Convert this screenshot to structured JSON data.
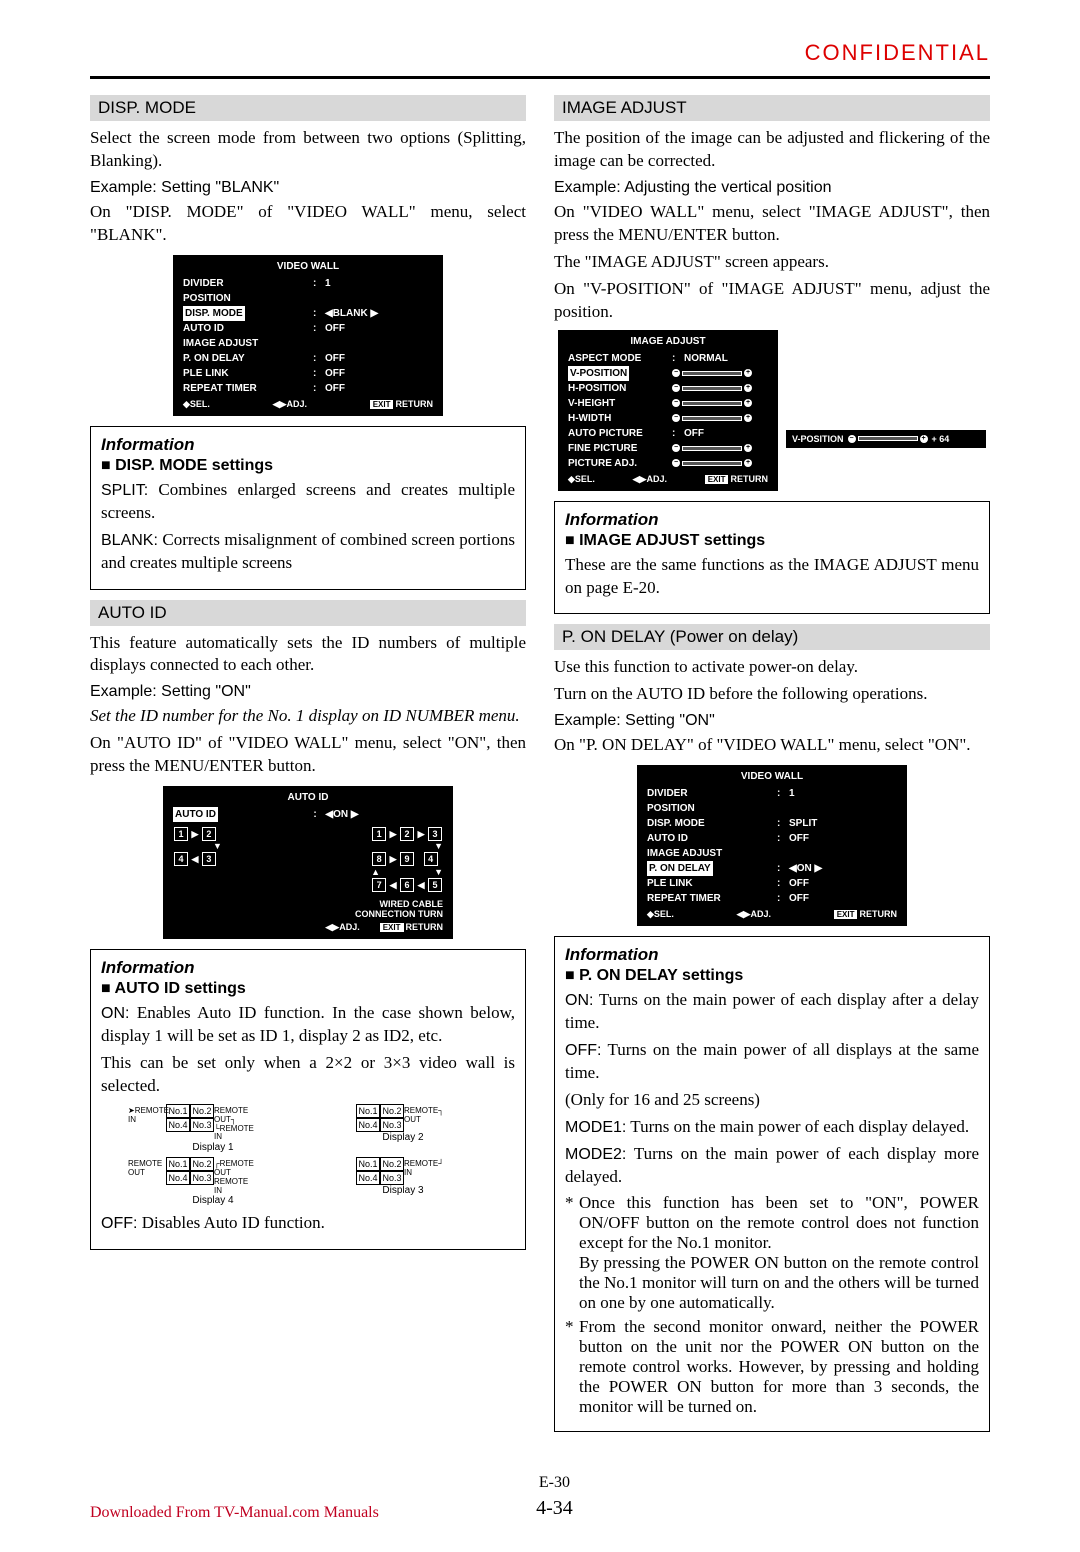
{
  "header": {
    "confidential": "CONFIDENTIAL"
  },
  "left": {
    "dispMode": {
      "head": "DISP. MODE",
      "p1": "Select the screen mode from between two options (Splitting, Blanking).",
      "example": "Example: Setting \"BLANK\"",
      "p2": "On \"DISP. MODE\" of \"VIDEO WALL\" menu, select \"BLANK\"."
    },
    "videoWallMenu1": {
      "title": "VIDEO WALL",
      "rows": [
        {
          "lbl": "DIVIDER",
          "val": "1",
          "colon": true
        },
        {
          "lbl": "POSITION",
          "val": "",
          "colon": false
        },
        {
          "lbl": "DISP. MODE",
          "val": "◀BLANK ▶",
          "colon": true,
          "selected": true
        },
        {
          "lbl": "AUTO ID",
          "val": "OFF",
          "colon": true
        },
        {
          "lbl": "IMAGE ADJUST",
          "val": "",
          "colon": false
        },
        {
          "lbl": "P. ON DELAY",
          "val": "OFF",
          "colon": true
        },
        {
          "lbl": "PLE LINK",
          "val": "OFF",
          "colon": true
        },
        {
          "lbl": "REPEAT TIMER",
          "val": "OFF",
          "colon": true
        }
      ],
      "foot": {
        "sel": "◆SEL.",
        "adj": "◀▶ADJ.",
        "exit": "EXIT",
        "ret": "RETURN"
      }
    },
    "info1": {
      "title": "Information",
      "sub": "DISP. MODE settings",
      "split_lbl": "SPLIT:",
      "split_txt": " Combines enlarged screens and creates multiple screens.",
      "blank_lbl": "BLANK:",
      "blank_txt": " Corrects misalignment of combined screen portions and creates multiple screens"
    },
    "autoId": {
      "head": "AUTO ID",
      "p1": "This feature automatically sets the ID numbers of multiple displays connected to each other.",
      "example": "Example: Setting \"ON\"",
      "setnote": "Set the ID number for the No. 1 display on ID NUMBER menu.",
      "p2": "On \"AUTO ID\" of \"VIDEO WALL\" menu, select \"ON\", then press the MENU/ENTER button."
    },
    "autoIdMenu": {
      "title": "AUTO ID",
      "lbl": "AUTO ID",
      "val": "◀ON  ▶",
      "wired": "WIRED CABLE",
      "conn": "CONNECTION TURN",
      "foot": {
        "adj": "◀▶ADJ.",
        "exit": "EXIT",
        "ret": "RETURN"
      }
    },
    "info2": {
      "title": "Information",
      "sub": "AUTO ID settings",
      "on_lbl": "ON:",
      "on_txt": " Enables Auto ID function. In the case shown below, display 1 will be set as ID 1, display 2 as ID2, etc.",
      "p2": "This can be set only when a 2×2 or 3×3 video wall is selected.",
      "off_lbl": "OFF:",
      "off_txt": " Disables Auto ID function."
    },
    "displays": {
      "d1": "Display 1",
      "d2": "Display 2",
      "d3": "Display 3",
      "d4": "Display 4",
      "remIn": "REMOTE IN",
      "remOut": "REMOTE OUT",
      "cells": [
        "No.1",
        "No.2",
        "No.4",
        "No.3"
      ]
    }
  },
  "right": {
    "imageAdjust": {
      "head": "IMAGE ADJUST",
      "p1": "The position of the image can be adjusted and flickering of the image can be corrected.",
      "example": "Example: Adjusting the vertical position",
      "p2": "On \"VIDEO WALL\" menu, select \"IMAGE ADJUST\", then press the MENU/ENTER button.",
      "p3": "The \"IMAGE ADJUST\" screen appears.",
      "p4": "On \"V-POSITION\" of \"IMAGE ADJUST\" menu, adjust the position."
    },
    "imageAdjustMenu": {
      "title": "IMAGE ADJUST",
      "rows": [
        {
          "lbl": "ASPECT MODE",
          "val": "NORMAL",
          "colon": true
        },
        {
          "lbl": "V-POSITION",
          "slider": true,
          "selected": true
        },
        {
          "lbl": "H-POSITION",
          "slider": true
        },
        {
          "lbl": "V-HEIGHT",
          "slider": true
        },
        {
          "lbl": "H-WIDTH",
          "slider": true
        },
        {
          "lbl": "AUTO PICTURE",
          "val": "OFF",
          "colon": true
        },
        {
          "lbl": "FINE PICTURE",
          "slider": true
        },
        {
          "lbl": "PICTURE ADJ.",
          "slider": true
        }
      ],
      "foot": {
        "sel": "◆SEL.",
        "adj": "◀▶ADJ.",
        "exit": "EXIT",
        "ret": "RETURN"
      },
      "sideLabel": "V-POSITION",
      "sideVal": "+ 64"
    },
    "info3": {
      "title": "Information",
      "sub": "IMAGE ADJUST settings",
      "p1": "These are the same functions as the IMAGE ADJUST menu on page E-20."
    },
    "pOnDelay": {
      "head": "P. ON DELAY (Power on delay)",
      "p1": "Use this function to activate power-on delay.",
      "p2": "Turn on the AUTO ID before the following operations.",
      "example": "Example: Setting \"ON\"",
      "p3": "On \"P. ON DELAY\" of \"VIDEO WALL\" menu, select \"ON\"."
    },
    "videoWallMenu2": {
      "title": "VIDEO WALL",
      "rows": [
        {
          "lbl": "DIVIDER",
          "val": "1",
          "colon": true
        },
        {
          "lbl": "POSITION",
          "val": "",
          "colon": false
        },
        {
          "lbl": "DISP. MODE",
          "val": "SPLIT",
          "colon": true
        },
        {
          "lbl": "AUTO ID",
          "val": "OFF",
          "colon": true
        },
        {
          "lbl": "IMAGE ADJUST",
          "val": "",
          "colon": false
        },
        {
          "lbl": "P. ON DELAY",
          "val": "◀ON  ▶",
          "colon": true,
          "selected": true
        },
        {
          "lbl": "PLE LINK",
          "val": "OFF",
          "colon": true
        },
        {
          "lbl": "REPEAT TIMER",
          "val": "OFF",
          "colon": true
        }
      ],
      "foot": {
        "sel": "◆SEL.",
        "adj": "◀▶ADJ.",
        "exit": "EXIT",
        "ret": "RETURN"
      }
    },
    "info4": {
      "title": "Information",
      "sub": "P. ON DELAY settings",
      "on_lbl": "ON:",
      "on_txt": " Turns on the main power of each display after a delay time.",
      "off_lbl": "OFF:",
      "off_txt": " Turns on the main power of all displays at the same time.",
      "only": "(Only for 16 and 25 screens)",
      "m1_lbl": "MODE1:",
      "m1_txt": " Turns on the main power of each display delayed.",
      "m2_lbl": "MODE2:",
      "m2_txt": " Turns on the main power of each display more delayed.",
      "note1a": "Once this function has been set to \"ON\", POWER ON/OFF button on the remote control does not function except for the No.1 monitor.",
      "note1b": "By pressing the POWER ON button on the remote control the No.1 monitor will turn on and the others will be turned on one by one automatically.",
      "note2": "From the second monitor onward, neither the POWER button on the unit nor the POWER ON button on the remote control works. However, by pressing and holding the POWER ON button for more than 3 seconds, the monitor will be turned on."
    }
  },
  "footer": {
    "download": "Downloaded From TV-Manual.com Manuals",
    "page1": "E-30",
    "page2": "4-34"
  }
}
